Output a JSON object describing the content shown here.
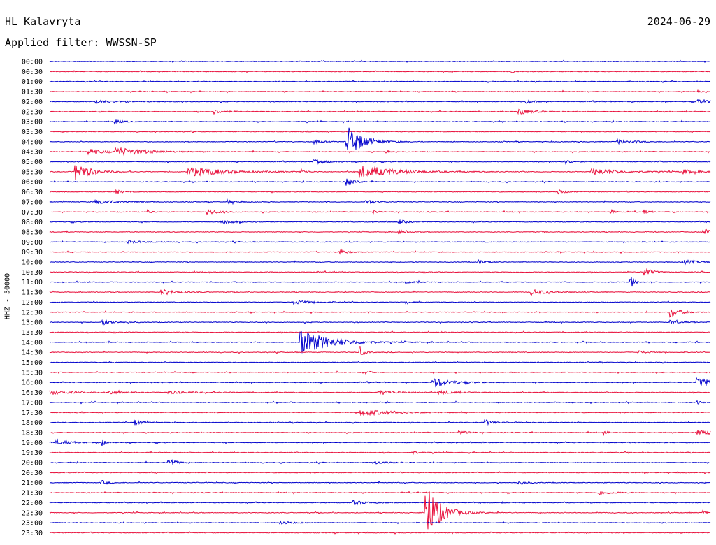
{
  "header": {
    "station": "HL Kalavryta",
    "date": "2024-06-29",
    "filter": "Applied filter: WWSSN-SP"
  },
  "chart_data": {
    "type": "seismogram",
    "ylabel": "HHZ - 50000",
    "colors": [
      "#0000cc",
      "#e8103c"
    ],
    "rows": [
      "00:00",
      "00:30",
      "01:00",
      "01:30",
      "02:00",
      "02:30",
      "03:00",
      "03:30",
      "04:00",
      "04:30",
      "05:00",
      "05:30",
      "06:00",
      "06:30",
      "07:00",
      "07:30",
      "08:00",
      "08:30",
      "09:00",
      "09:30",
      "10:00",
      "10:30",
      "11:00",
      "11:30",
      "12:00",
      "12:30",
      "13:00",
      "13:30",
      "14:00",
      "14:30",
      "15:00",
      "15:30",
      "16:00",
      "16:30",
      "17:00",
      "17:30",
      "18:00",
      "18:30",
      "19:00",
      "19:30",
      "20:00",
      "20:30",
      "21:00",
      "21:30",
      "22:00",
      "22:30",
      "23:00",
      "23:30"
    ],
    "events": [
      {
        "row": 1,
        "t": 0.7,
        "a": 2,
        "d": 0.005
      },
      {
        "row": 3,
        "t": 0.98,
        "a": 2,
        "d": 0.01
      },
      {
        "row": 4,
        "t": 0.07,
        "a": 2,
        "d": 0.04
      },
      {
        "row": 4,
        "t": 0.72,
        "a": 3,
        "d": 0.01
      },
      {
        "row": 4,
        "t": 0.98,
        "a": 3,
        "d": 0.03
      },
      {
        "row": 5,
        "t": 0.25,
        "a": 3,
        "d": 0.015
      },
      {
        "row": 5,
        "t": 0.71,
        "a": 4,
        "d": 0.02
      },
      {
        "row": 6,
        "t": 0.1,
        "a": 3,
        "d": 0.01
      },
      {
        "row": 8,
        "t": 0.45,
        "a": 26,
        "d": 0.02
      },
      {
        "row": 8,
        "t": 0.4,
        "a": 3,
        "d": 0.01
      },
      {
        "row": 8,
        "t": 0.86,
        "a": 3,
        "d": 0.02
      },
      {
        "row": 9,
        "t": 0.06,
        "a": 4,
        "d": 0.02
      },
      {
        "row": 9,
        "t": 0.1,
        "a": 6,
        "d": 0.04
      },
      {
        "row": 9,
        "t": 0.51,
        "a": 3,
        "d": 0.005
      },
      {
        "row": 10,
        "t": 0.4,
        "a": 3,
        "d": 0.02
      },
      {
        "row": 10,
        "t": 0.78,
        "a": 3,
        "d": 0.01
      },
      {
        "row": 11,
        "t": 0.04,
        "a": 13,
        "d": 0.02
      },
      {
        "row": 11,
        "t": 0.21,
        "a": 7,
        "d": 0.05
      },
      {
        "row": 11,
        "t": 0.38,
        "a": 5,
        "d": 0.005
      },
      {
        "row": 11,
        "t": 0.47,
        "a": 9,
        "d": 0.05
      },
      {
        "row": 11,
        "t": 0.82,
        "a": 5,
        "d": 0.04
      },
      {
        "row": 11,
        "t": 0.96,
        "a": 3,
        "d": 0.02
      },
      {
        "row": 12,
        "t": 0.45,
        "a": 6,
        "d": 0.01
      },
      {
        "row": 13,
        "t": 0.1,
        "a": 3,
        "d": 0.01
      },
      {
        "row": 13,
        "t": 0.77,
        "a": 3,
        "d": 0.01
      },
      {
        "row": 14,
        "t": 0.07,
        "a": 3,
        "d": 0.03
      },
      {
        "row": 14,
        "t": 0.27,
        "a": 3,
        "d": 0.01
      },
      {
        "row": 14,
        "t": 0.48,
        "a": 4,
        "d": 0.01
      },
      {
        "row": 15,
        "t": 0.15,
        "a": 3,
        "d": 0.005
      },
      {
        "row": 15,
        "t": 0.24,
        "a": 4,
        "d": 0.015
      },
      {
        "row": 15,
        "t": 0.49,
        "a": 3,
        "d": 0.005
      },
      {
        "row": 15,
        "t": 0.85,
        "a": 3,
        "d": 0.005
      },
      {
        "row": 15,
        "t": 0.9,
        "a": 3,
        "d": 0.005
      },
      {
        "row": 16,
        "t": 0.26,
        "a": 3,
        "d": 0.02
      },
      {
        "row": 16,
        "t": 0.53,
        "a": 3,
        "d": 0.01
      },
      {
        "row": 17,
        "t": 0.99,
        "a": 4,
        "d": 0.015
      },
      {
        "row": 17,
        "t": 0.53,
        "a": 3,
        "d": 0.01
      },
      {
        "row": 18,
        "t": 0.12,
        "a": 2,
        "d": 0.02
      },
      {
        "row": 19,
        "t": 0.44,
        "a": 4,
        "d": 0.01
      },
      {
        "row": 20,
        "t": 0.65,
        "a": 3,
        "d": 0.01
      },
      {
        "row": 20,
        "t": 0.96,
        "a": 3,
        "d": 0.02
      },
      {
        "row": 21,
        "t": 0.9,
        "a": 7,
        "d": 0.01
      },
      {
        "row": 22,
        "t": 0.88,
        "a": 8,
        "d": 0.005
      },
      {
        "row": 22,
        "t": 0.54,
        "a": 2,
        "d": 0.01
      },
      {
        "row": 23,
        "t": 0.17,
        "a": 4,
        "d": 0.02
      },
      {
        "row": 23,
        "t": 0.73,
        "a": 4,
        "d": 0.02
      },
      {
        "row": 24,
        "t": 0.37,
        "a": 3,
        "d": 0.02
      },
      {
        "row": 24,
        "t": 0.54,
        "a": 3,
        "d": 0.005
      },
      {
        "row": 25,
        "t": 0.94,
        "a": 7,
        "d": 0.015
      },
      {
        "row": 26,
        "t": 0.08,
        "a": 3,
        "d": 0.02
      },
      {
        "row": 26,
        "t": 0.94,
        "a": 3,
        "d": 0.01
      },
      {
        "row": 28,
        "t": 0.38,
        "a": 18,
        "d": 0.04
      },
      {
        "row": 29,
        "t": 0.47,
        "a": 8,
        "d": 0.005
      },
      {
        "row": 29,
        "t": 0.89,
        "a": 3,
        "d": 0.01
      },
      {
        "row": 31,
        "t": 0.48,
        "a": 3,
        "d": 0.005
      },
      {
        "row": 32,
        "t": 0.58,
        "a": 7,
        "d": 0.025
      },
      {
        "row": 32,
        "t": 0.98,
        "a": 6,
        "d": 0.03
      },
      {
        "row": 33,
        "t": 0.0,
        "a": 3,
        "d": 0.03
      },
      {
        "row": 33,
        "t": 0.09,
        "a": 3,
        "d": 0.015
      },
      {
        "row": 33,
        "t": 0.18,
        "a": 2,
        "d": 0.04
      },
      {
        "row": 33,
        "t": 0.5,
        "a": 3,
        "d": 0.03
      },
      {
        "row": 33,
        "t": 0.59,
        "a": 3,
        "d": 0.02
      },
      {
        "row": 34,
        "t": 0.98,
        "a": 3,
        "d": 0.005
      },
      {
        "row": 35,
        "t": 0.47,
        "a": 5,
        "d": 0.04
      },
      {
        "row": 36,
        "t": 0.13,
        "a": 4,
        "d": 0.01
      },
      {
        "row": 36,
        "t": 0.66,
        "a": 4,
        "d": 0.01
      },
      {
        "row": 37,
        "t": 0.62,
        "a": 3,
        "d": 0.01
      },
      {
        "row": 37,
        "t": 0.84,
        "a": 3,
        "d": 0.005
      },
      {
        "row": 37,
        "t": 0.98,
        "a": 4,
        "d": 0.03
      },
      {
        "row": 38,
        "t": 0.01,
        "a": 3,
        "d": 0.02
      },
      {
        "row": 38,
        "t": 0.08,
        "a": 5,
        "d": 0.005
      },
      {
        "row": 39,
        "t": 0.55,
        "a": 2,
        "d": 0.01
      },
      {
        "row": 40,
        "t": 0.18,
        "a": 6,
        "d": 0.01
      },
      {
        "row": 40,
        "t": 0.49,
        "a": 2,
        "d": 0.02
      },
      {
        "row": 42,
        "t": 0.08,
        "a": 3,
        "d": 0.01
      },
      {
        "row": 42,
        "t": 0.71,
        "a": 3,
        "d": 0.01
      },
      {
        "row": 43,
        "t": 0.83,
        "a": 3,
        "d": 0.02
      },
      {
        "row": 44,
        "t": 0.46,
        "a": 3,
        "d": 0.02
      },
      {
        "row": 45,
        "t": 0.57,
        "a": 40,
        "d": 0.02
      },
      {
        "row": 45,
        "t": 0.99,
        "a": 3,
        "d": 0.005
      },
      {
        "row": 46,
        "t": 0.35,
        "a": 2,
        "d": 0.02
      }
    ]
  }
}
